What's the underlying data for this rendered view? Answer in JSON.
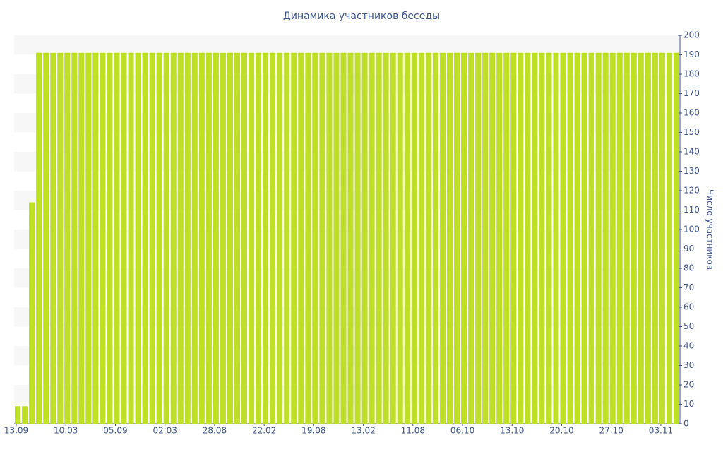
{
  "chart_data": {
    "type": "bar",
    "title": "Динамика участников беседы",
    "y_axis_label": "Число участников",
    "categories": [
      "13.09",
      null,
      null,
      null,
      null,
      null,
      null,
      "10.03",
      null,
      null,
      null,
      null,
      null,
      null,
      "05.09",
      null,
      null,
      null,
      null,
      null,
      null,
      "02.03",
      null,
      null,
      null,
      null,
      null,
      null,
      "28.08",
      null,
      null,
      null,
      null,
      null,
      null,
      "22.02",
      null,
      null,
      null,
      null,
      null,
      null,
      "19.08",
      null,
      null,
      null,
      null,
      null,
      null,
      "13.02",
      null,
      null,
      null,
      null,
      null,
      null,
      "11.08",
      null,
      null,
      null,
      null,
      null,
      null,
      "06.10",
      null,
      null,
      null,
      null,
      null,
      null,
      "13.10",
      null,
      null,
      null,
      null,
      null,
      null,
      "20.10",
      null,
      null,
      null,
      null,
      null,
      null,
      "27.10",
      null,
      null,
      null,
      null,
      null,
      null,
      "03.11",
      null,
      null
    ],
    "values": [
      9,
      9,
      114,
      191,
      191,
      191,
      191,
      191,
      191,
      191,
      191,
      191,
      191,
      191,
      191,
      191,
      191,
      191,
      191,
      191,
      191,
      191,
      191,
      191,
      191,
      191,
      191,
      191,
      191,
      191,
      191,
      191,
      191,
      191,
      191,
      191,
      191,
      191,
      191,
      191,
      191,
      191,
      191,
      191,
      191,
      191,
      191,
      191,
      191,
      191,
      191,
      191,
      191,
      191,
      191,
      191,
      191,
      191,
      191,
      191,
      191,
      191,
      191,
      191,
      191,
      191,
      191,
      191,
      191,
      191,
      191,
      191,
      191,
      191,
      191,
      191,
      191,
      191,
      191,
      191,
      191,
      191,
      191,
      191,
      191,
      191,
      191,
      191,
      191,
      191,
      191,
      191,
      191,
      191
    ],
    "color": "#bddf26",
    "ylim": [
      0,
      200
    ],
    "yticks": [
      0,
      10,
      20,
      30,
      40,
      50,
      60,
      70,
      80,
      90,
      100,
      110,
      120,
      130,
      140,
      150,
      160,
      170,
      180,
      190,
      200
    ],
    "grid": true,
    "y_axis_side": "right"
  }
}
